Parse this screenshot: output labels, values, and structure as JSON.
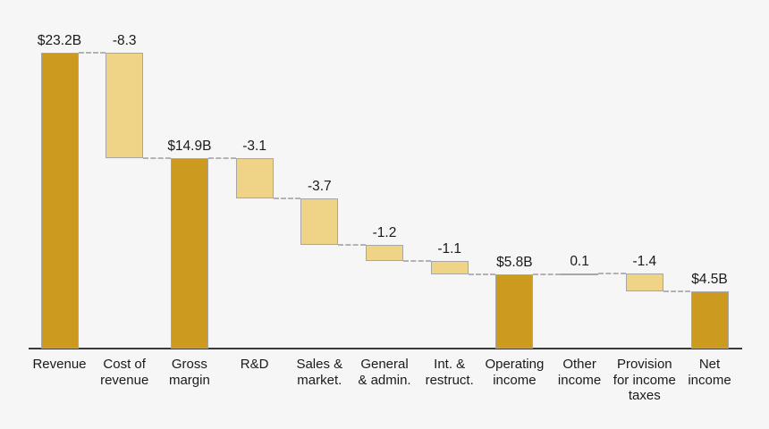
{
  "chart_data": {
    "type": "bar",
    "subtype": "waterfall",
    "title": "",
    "unit": "$ billions",
    "categories": [
      "Revenue",
      "Cost of revenue",
      "Gross margin",
      "R&D",
      "Sales & market.",
      "General & admin.",
      "Int. & restruct.",
      "Operating income",
      "Other income",
      "Provision for income taxes",
      "Net income"
    ],
    "points": [
      {
        "name": "Revenue",
        "label_lines": [
          "Revenue"
        ],
        "kind": "total",
        "value": 23.2,
        "start": 0,
        "end": 23.2,
        "value_label": "$23.2B"
      },
      {
        "name": "Cost of revenue",
        "label_lines": [
          "Cost of",
          "revenue"
        ],
        "kind": "decrease",
        "value": -8.3,
        "start": 23.2,
        "end": 14.9,
        "value_label": "-8.3"
      },
      {
        "name": "Gross margin",
        "label_lines": [
          "Gross",
          "margin"
        ],
        "kind": "total",
        "value": 14.9,
        "start": 0,
        "end": 14.9,
        "value_label": "$14.9B"
      },
      {
        "name": "R&D",
        "label_lines": [
          "R&D"
        ],
        "kind": "decrease",
        "value": -3.1,
        "start": 14.9,
        "end": 11.8,
        "value_label": "-3.1"
      },
      {
        "name": "Sales & market.",
        "label_lines": [
          "Sales &",
          "market."
        ],
        "kind": "decrease",
        "value": -3.7,
        "start": 11.8,
        "end": 8.1,
        "value_label": "-3.7"
      },
      {
        "name": "General & admin.",
        "label_lines": [
          "General",
          "& admin."
        ],
        "kind": "decrease",
        "value": -1.2,
        "start": 8.1,
        "end": 6.9,
        "value_label": "-1.2"
      },
      {
        "name": "Int. & restruct.",
        "label_lines": [
          "Int. &",
          "restruct."
        ],
        "kind": "decrease",
        "value": -1.1,
        "start": 6.9,
        "end": 5.8,
        "value_label": "-1.1"
      },
      {
        "name": "Operating income",
        "label_lines": [
          "Operating",
          "income"
        ],
        "kind": "total",
        "value": 5.8,
        "start": 0,
        "end": 5.8,
        "value_label": "$5.8B"
      },
      {
        "name": "Other income",
        "label_lines": [
          "Other",
          "income"
        ],
        "kind": "increase",
        "value": 0.1,
        "start": 5.8,
        "end": 5.9,
        "value_label": "0.1"
      },
      {
        "name": "Provision for income taxes",
        "label_lines": [
          "Provision",
          "for income",
          "taxes"
        ],
        "kind": "decrease",
        "value": -1.4,
        "start": 5.9,
        "end": 4.5,
        "value_label": "-1.4"
      },
      {
        "name": "Net income",
        "label_lines": [
          "Net",
          "income"
        ],
        "kind": "total",
        "value": 4.5,
        "start": 0,
        "end": 4.5,
        "value_label": "$4.5B"
      }
    ],
    "ylim": [
      0,
      25
    ],
    "baseline": 0,
    "grid": false,
    "legend": "none",
    "colors": {
      "total_fill": "#CB9A1E",
      "change_fill": "#EFD387",
      "bar_border": "#A6A6A6",
      "connector": "#B3B3B3",
      "axis": "#3A3A3A",
      "text": "#1A1A1A",
      "background": "#F6F6F6"
    }
  }
}
